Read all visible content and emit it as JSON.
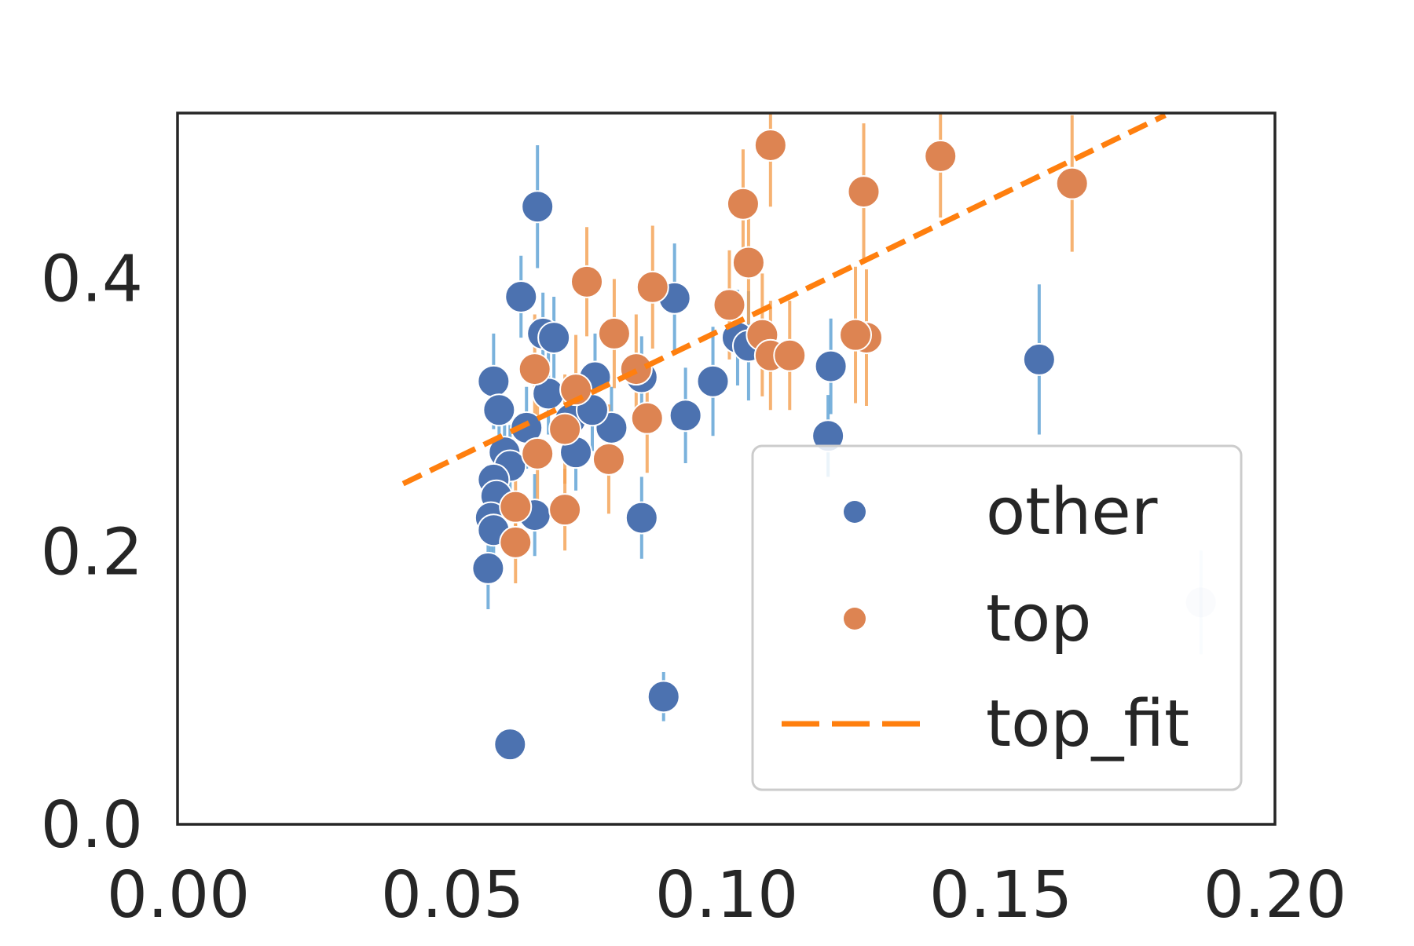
{
  "chart_data": {
    "type": "scatter",
    "xlim": [
      0.0,
      0.2
    ],
    "ylim": [
      0.0,
      0.52
    ],
    "x_ticks": [
      "0.00",
      "0.05",
      "0.10",
      "0.15",
      "0.20"
    ],
    "x_tick_values": [
      0.0,
      0.05,
      0.1,
      0.15,
      0.2
    ],
    "y_ticks": [
      "0.0",
      "0.2",
      "0.4"
    ],
    "y_tick_values": [
      0.0,
      0.2,
      0.4
    ],
    "grid": false,
    "legend_position": "lower-right",
    "legend": [
      {
        "label": "other",
        "kind": "point",
        "color": "#4c72b0"
      },
      {
        "label": "top",
        "kind": "point",
        "color": "#dd8452"
      },
      {
        "label": "top_fit",
        "kind": "dashed-line",
        "color": "#ff7f0e"
      }
    ],
    "series": [
      {
        "name": "other",
        "color": "#4c72b0",
        "error_color": "#5a9fd4",
        "points": [
          {
            "x": 0.0655,
            "y": 0.452,
            "err": 0.045
          },
          {
            "x": 0.0625,
            "y": 0.386,
            "err": 0.03
          },
          {
            "x": 0.0575,
            "y": 0.324,
            "err": 0.035
          },
          {
            "x": 0.0585,
            "y": 0.303,
            "err": 0.03
          },
          {
            "x": 0.0595,
            "y": 0.272,
            "err": 0.028
          },
          {
            "x": 0.0605,
            "y": 0.262,
            "err": 0.03
          },
          {
            "x": 0.0575,
            "y": 0.252,
            "err": 0.028
          },
          {
            "x": 0.058,
            "y": 0.24,
            "err": 0.028
          },
          {
            "x": 0.057,
            "y": 0.224,
            "err": 0.028
          },
          {
            "x": 0.0575,
            "y": 0.215,
            "err": 0.028
          },
          {
            "x": 0.065,
            "y": 0.226,
            "err": 0.03
          },
          {
            "x": 0.0565,
            "y": 0.187,
            "err": 0.03
          },
          {
            "x": 0.0635,
            "y": 0.29,
            "err": 0.03
          },
          {
            "x": 0.0665,
            "y": 0.359,
            "err": 0.03
          },
          {
            "x": 0.0685,
            "y": 0.356,
            "err": 0.03
          },
          {
            "x": 0.0675,
            "y": 0.315,
            "err": 0.03
          },
          {
            "x": 0.0715,
            "y": 0.296,
            "err": 0.03
          },
          {
            "x": 0.0725,
            "y": 0.272,
            "err": 0.028
          },
          {
            "x": 0.076,
            "y": 0.327,
            "err": 0.032
          },
          {
            "x": 0.079,
            "y": 0.29,
            "err": 0.03
          },
          {
            "x": 0.0755,
            "y": 0.303,
            "err": 0.03
          },
          {
            "x": 0.0845,
            "y": 0.224,
            "err": 0.03
          },
          {
            "x": 0.0885,
            "y": 0.093,
            "err": 0.018
          },
          {
            "x": 0.0605,
            "y": 0.058,
            "err": 0.012
          },
          {
            "x": 0.0905,
            "y": 0.385,
            "err": 0.04
          },
          {
            "x": 0.0845,
            "y": 0.327,
            "err": 0.03
          },
          {
            "x": 0.0925,
            "y": 0.299,
            "err": 0.035
          },
          {
            "x": 0.0975,
            "y": 0.324,
            "err": 0.04
          },
          {
            "x": 0.102,
            "y": 0.356,
            "err": 0.035
          },
          {
            "x": 0.104,
            "y": 0.35,
            "err": 0.04
          },
          {
            "x": 0.119,
            "y": 0.335,
            "err": 0.035
          },
          {
            "x": 0.1185,
            "y": 0.284,
            "err": 0.03
          },
          {
            "x": 0.157,
            "y": 0.34,
            "err": 0.055
          },
          {
            "x": 0.1865,
            "y": 0.162,
            "err": 0.038,
            "faded": true
          }
        ]
      },
      {
        "name": "top",
        "color": "#dd8452",
        "error_color": "#f5a050",
        "points": [
          {
            "x": 0.108,
            "y": 0.497,
            "err": 0.045
          },
          {
            "x": 0.139,
            "y": 0.489,
            "err": 0.045
          },
          {
            "x": 0.125,
            "y": 0.463,
            "err": 0.05
          },
          {
            "x": 0.103,
            "y": 0.454,
            "err": 0.04
          },
          {
            "x": 0.163,
            "y": 0.469,
            "err": 0.05
          },
          {
            "x": 0.104,
            "y": 0.411,
            "err": 0.045
          },
          {
            "x": 0.0745,
            "y": 0.397,
            "err": 0.04
          },
          {
            "x": 0.0865,
            "y": 0.393,
            "err": 0.045
          },
          {
            "x": 0.1005,
            "y": 0.38,
            "err": 0.04
          },
          {
            "x": 0.1065,
            "y": 0.358,
            "err": 0.045
          },
          {
            "x": 0.0795,
            "y": 0.359,
            "err": 0.04
          },
          {
            "x": 0.1255,
            "y": 0.356,
            "err": 0.05
          },
          {
            "x": 0.1235,
            "y": 0.358,
            "err": 0.05
          },
          {
            "x": 0.108,
            "y": 0.343,
            "err": 0.04
          },
          {
            "x": 0.1115,
            "y": 0.343,
            "err": 0.04
          },
          {
            "x": 0.0835,
            "y": 0.333,
            "err": 0.04
          },
          {
            "x": 0.065,
            "y": 0.333,
            "err": 0.04
          },
          {
            "x": 0.0725,
            "y": 0.318,
            "err": 0.04
          },
          {
            "x": 0.0855,
            "y": 0.297,
            "err": 0.04
          },
          {
            "x": 0.0705,
            "y": 0.289,
            "err": 0.04
          },
          {
            "x": 0.0785,
            "y": 0.267,
            "err": 0.04
          },
          {
            "x": 0.0655,
            "y": 0.271,
            "err": 0.04
          },
          {
            "x": 0.0705,
            "y": 0.23,
            "err": 0.03
          },
          {
            "x": 0.0615,
            "y": 0.232,
            "err": 0.03
          },
          {
            "x": 0.0615,
            "y": 0.206,
            "err": 0.03
          }
        ]
      }
    ],
    "fit_line": {
      "name": "top_fit",
      "color": "#ff7f0e",
      "x": [
        0.041,
        0.18
      ],
      "y": [
        0.249,
        0.519
      ]
    }
  }
}
